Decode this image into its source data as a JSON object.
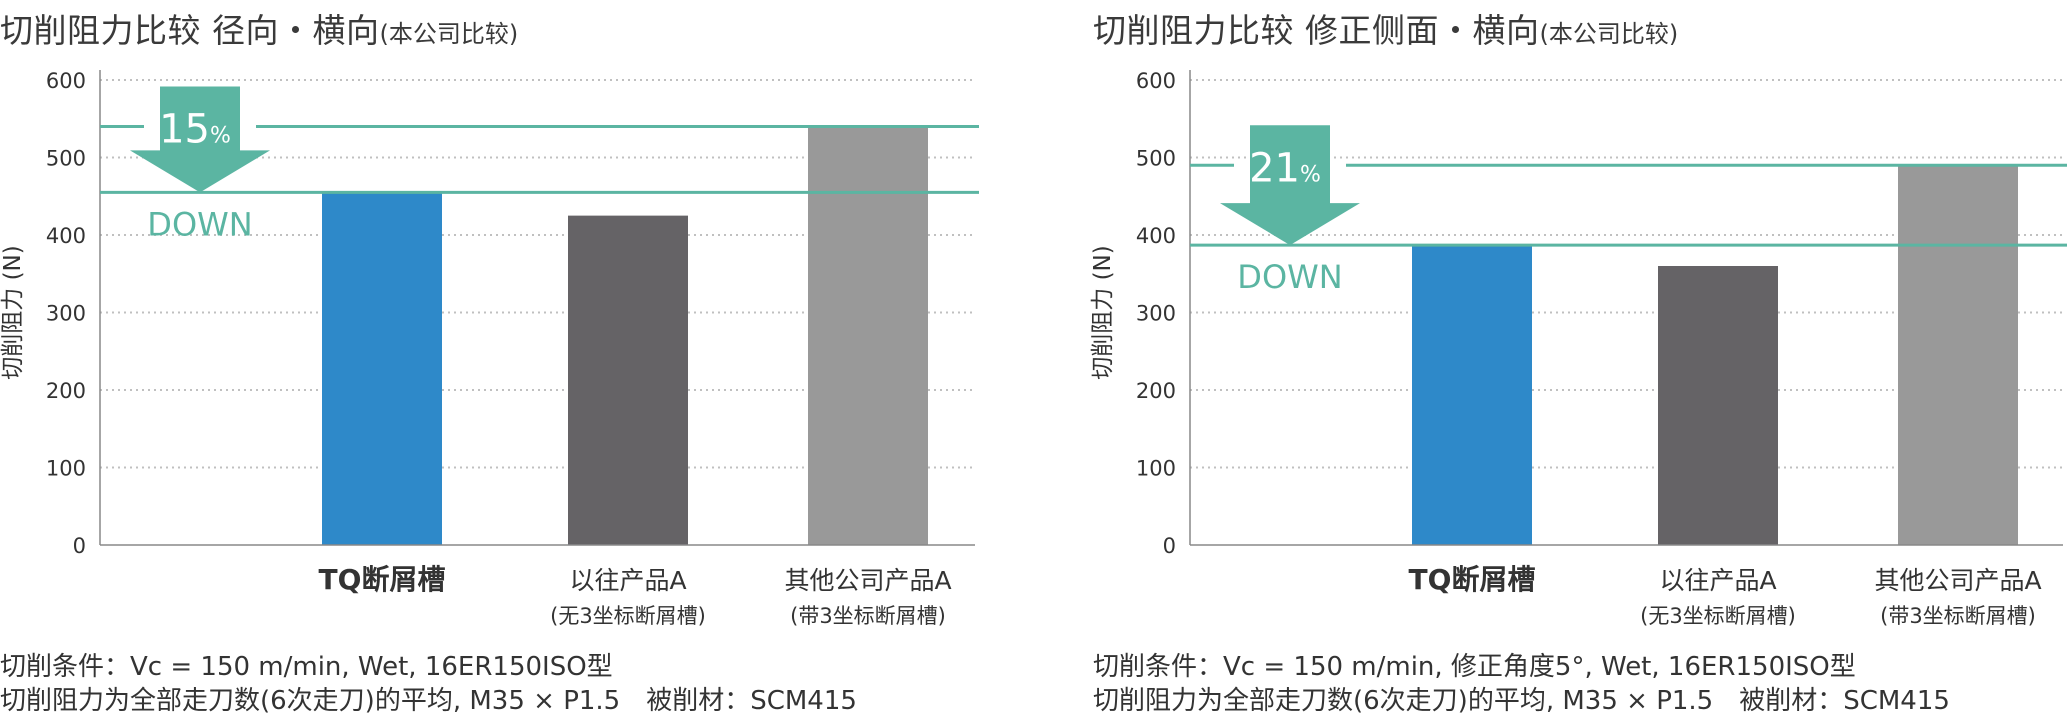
{
  "colors": {
    "accent": "#5bb5a2",
    "bar1": "#2e89c9",
    "bar2": "#656366",
    "bar3": "#999999",
    "grid": "#c0c0c0",
    "axis": "#888888"
  },
  "panels": [
    {
      "title_main": "切削阻力比较 径向・横向",
      "title_sub": "(本公司比较)",
      "badge_value": "15",
      "badge_unit": "%",
      "badge_word": "DOWN",
      "cond_line1": "切削条件：Vc = 150 m/min, Wet, 16ER150ISO型",
      "cond_line2": "切削阻力为全部走刀数(6次走刀)的平均, M35 × P1.5　被削材：SCM415",
      "chart_data": {
        "type": "bar",
        "ylabel": "切削阻力 (N)",
        "ylim": [
          0,
          600
        ],
        "yticks": [
          0,
          100,
          200,
          300,
          400,
          500,
          600
        ],
        "grid": true,
        "categories": [
          {
            "name": "TQ断屑槽",
            "sub": "",
            "bold": true
          },
          {
            "name": "以往产品A",
            "sub": "(无3坐标断屑槽)",
            "bold": false
          },
          {
            "name": "其他公司产品A",
            "sub": "(带3坐标断屑槽)",
            "bold": false
          }
        ],
        "values": [
          455,
          425,
          540
        ],
        "reference_lines": [
          540,
          455
        ]
      }
    },
    {
      "title_main": "切削阻力比较 修正侧面・横向",
      "title_sub": "(本公司比较)",
      "badge_value": "21",
      "badge_unit": "%",
      "badge_word": "DOWN",
      "cond_line1": "切削条件：Vc = 150 m/min, 修正角度5°, Wet, 16ER150ISO型",
      "cond_line2": "切削阻力为全部走刀数(6次走刀)的平均, M35 × P1.5　被削材：SCM415",
      "chart_data": {
        "type": "bar",
        "ylabel": "切削阻力 (N)",
        "ylim": [
          0,
          600
        ],
        "yticks": [
          0,
          100,
          200,
          300,
          400,
          500,
          600
        ],
        "grid": true,
        "categories": [
          {
            "name": "TQ断屑槽",
            "sub": "",
            "bold": true
          },
          {
            "name": "以往产品A",
            "sub": "(无3坐标断屑槽)",
            "bold": false
          },
          {
            "name": "其他公司产品A",
            "sub": "(带3坐标断屑槽)",
            "bold": false
          }
        ],
        "values": [
          387,
          360,
          490
        ],
        "reference_lines": [
          490,
          387
        ]
      }
    }
  ]
}
